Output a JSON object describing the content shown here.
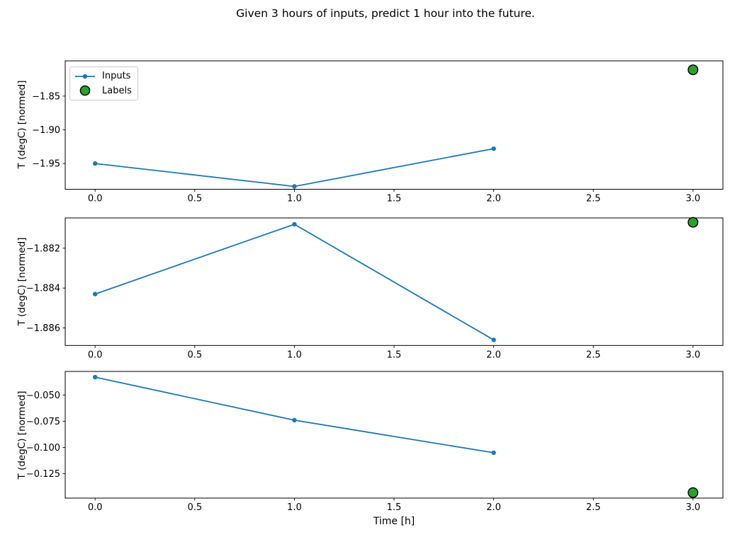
{
  "figure": {
    "title": "Given 3 hours of inputs, predict 1 hour into the future.",
    "xlabel": "Time [h]",
    "ylabel": "T (degC) [normed]",
    "colors": {
      "inputs": "#1f77b4",
      "labels_fill": "#2ca02c",
      "labels_edge": "#000000",
      "spine": "#000000"
    },
    "legend": {
      "items": [
        {
          "label": "Inputs",
          "marker": "line-dot"
        },
        {
          "label": "Labels",
          "marker": "circle"
        }
      ]
    }
  },
  "chart_data": [
    {
      "type": "line",
      "ylabel": "T (degC) [normed]",
      "xlabel": "",
      "xlim": [
        -0.15,
        3.15
      ],
      "ylim": [
        -1.9882,
        -1.7977
      ],
      "x_ticks": [
        [
          0.0,
          "0.0"
        ],
        [
          0.5,
          "0.5"
        ],
        [
          1.0,
          "1.0"
        ],
        [
          1.5,
          "1.5"
        ],
        [
          2.0,
          "2.0"
        ],
        [
          2.5,
          "2.5"
        ],
        [
          3.0,
          "3.0"
        ]
      ],
      "y_ticks": [
        [
          -1.85,
          "−1.85"
        ],
        [
          -1.9,
          "−1.90"
        ],
        [
          -1.95,
          "−1.95"
        ]
      ],
      "legend_visible": true,
      "series": [
        {
          "name": "Inputs",
          "type": "line",
          "x": [
            0,
            1,
            2
          ],
          "y": [
            -1.95,
            -1.984,
            -1.928
          ]
        },
        {
          "name": "Labels",
          "type": "scatter",
          "x": [
            3
          ],
          "y": [
            -1.811
          ]
        }
      ]
    },
    {
      "type": "line",
      "ylabel": "T (degC) [normed]",
      "xlabel": "",
      "xlim": [
        -0.15,
        3.15
      ],
      "ylim": [
        -1.88688,
        -1.88048
      ],
      "x_ticks": [
        [
          0.0,
          "0.0"
        ],
        [
          0.5,
          "0.5"
        ],
        [
          1.0,
          "1.0"
        ],
        [
          1.5,
          "1.5"
        ],
        [
          2.0,
          "2.0"
        ],
        [
          2.5,
          "2.5"
        ],
        [
          3.0,
          "3.0"
        ]
      ],
      "y_ticks": [
        [
          -1.882,
          "−1.882"
        ],
        [
          -1.884,
          "−1.884"
        ],
        [
          -1.886,
          "−1.886"
        ]
      ],
      "legend_visible": false,
      "series": [
        {
          "name": "Inputs",
          "type": "line",
          "x": [
            0,
            1,
            2
          ],
          "y": [
            -1.8843,
            -1.8808,
            -1.8866
          ]
        },
        {
          "name": "Labels",
          "type": "scatter",
          "x": [
            3
          ],
          "y": [
            -1.8807
          ]
        }
      ]
    },
    {
      "type": "line",
      "ylabel": "T (degC) [normed]",
      "xlabel": "Time [h]",
      "xlim": [
        -0.15,
        3.15
      ],
      "ylim": [
        -0.14821,
        -0.02756
      ],
      "x_ticks": [
        [
          0.0,
          "0.0"
        ],
        [
          0.5,
          "0.5"
        ],
        [
          1.0,
          "1.0"
        ],
        [
          1.5,
          "1.5"
        ],
        [
          2.0,
          "2.0"
        ],
        [
          2.5,
          "2.5"
        ],
        [
          3.0,
          "3.0"
        ]
      ],
      "y_ticks": [
        [
          -0.05,
          "−0.050"
        ],
        [
          -0.075,
          "−0.075"
        ],
        [
          -0.1,
          "−0.100"
        ],
        [
          -0.125,
          "−0.125"
        ]
      ],
      "legend_visible": false,
      "series": [
        {
          "name": "Inputs",
          "type": "line",
          "x": [
            0,
            1,
            2
          ],
          "y": [
            -0.033,
            -0.074,
            -0.105
          ]
        },
        {
          "name": "Labels",
          "type": "scatter",
          "x": [
            3
          ],
          "y": [
            -0.143
          ]
        }
      ]
    }
  ]
}
